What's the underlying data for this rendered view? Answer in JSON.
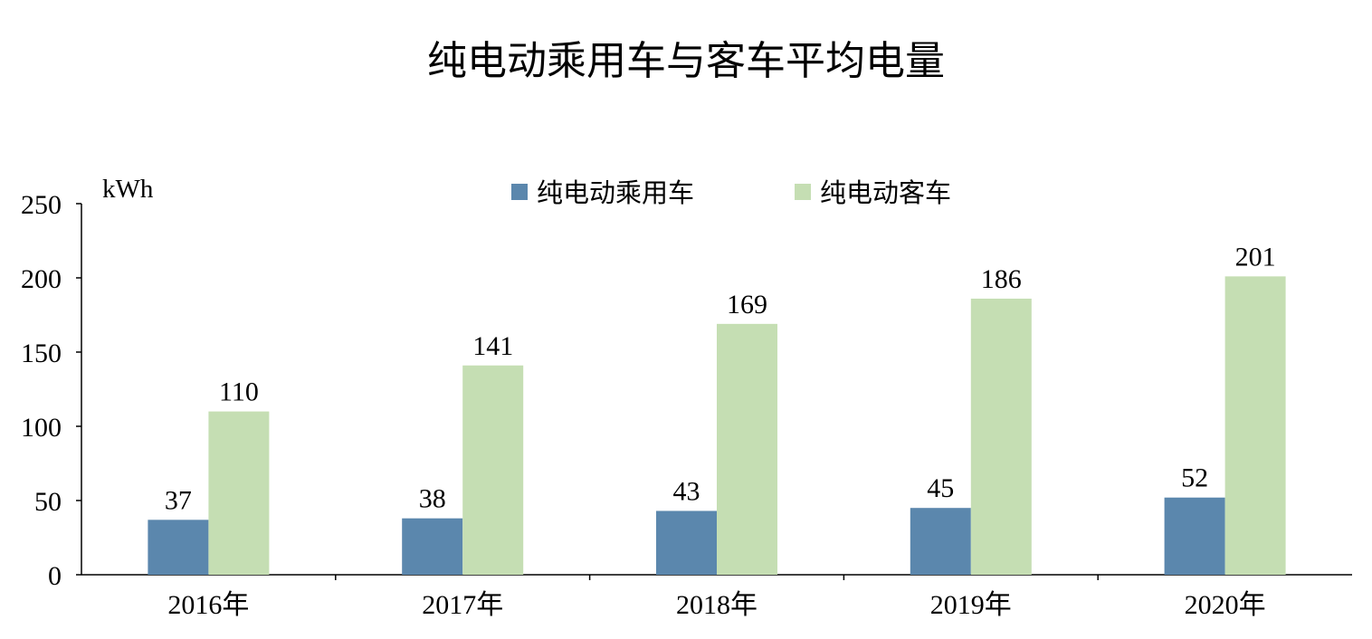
{
  "chart_data": {
    "type": "bar",
    "title": "纯电动乘用车与客车平均电量",
    "unit_label": "kWh",
    "categories": [
      "2016年",
      "2017年",
      "2018年",
      "2019年",
      "2020年"
    ],
    "series": [
      {
        "name": "纯电动乘用车",
        "color": "#5b87ad",
        "values": [
          37,
          38,
          43,
          45,
          52
        ]
      },
      {
        "name": "纯电动客车",
        "color": "#c5deb3",
        "values": [
          110,
          141,
          169,
          186,
          201
        ]
      }
    ],
    "ylim": [
      0,
      250
    ],
    "yticks": [
      "0",
      "50",
      "100",
      "150",
      "200",
      "250"
    ],
    "grid": false,
    "legend_position": "top-center",
    "data_labels": true
  }
}
